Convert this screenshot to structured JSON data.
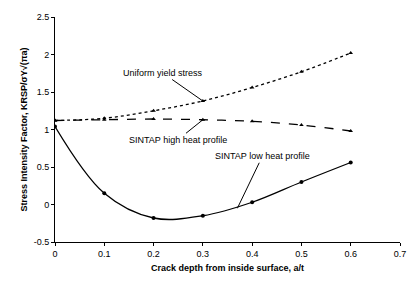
{
  "chart_data": {
    "type": "line",
    "x_label": "Crack depth from inside surface, a/t",
    "y_label": "Stress Intensity Factor, KRSP/σY√(πa)",
    "x": [
      0,
      0.1,
      0.2,
      0.3,
      0.4,
      0.5,
      0.6
    ],
    "series": [
      {
        "name": "Uniform yield stress",
        "color": "#000000",
        "marker": "triangle-up",
        "line_style": "dot",
        "values": [
          1.12,
          1.15,
          1.25,
          1.38,
          1.56,
          1.77,
          2.02
        ]
      },
      {
        "name": "SINTAP high heat profile",
        "color": "#000000",
        "marker": "triangle-up",
        "line_style": "dash",
        "values": [
          1.12,
          1.13,
          1.14,
          1.13,
          1.11,
          1.06,
          0.98
        ]
      },
      {
        "name": "SINTAP low heat profile",
        "color": "#000000",
        "marker": "circle",
        "line_style": "solid",
        "values": [
          1.04,
          0.15,
          -0.18,
          -0.15,
          0.03,
          0.3,
          0.56
        ]
      }
    ],
    "annotations": [
      {
        "text": "Uniform yield stress",
        "x": 0.3,
        "y": 1.38
      },
      {
        "text": "SINTAP high heat profile",
        "x": 0.3,
        "y": 1.13
      },
      {
        "text": "SINTAP low heat profile",
        "x": 0.37,
        "y": -0.05
      }
    ],
    "xlim": [
      0,
      0.7
    ],
    "xticks": [
      0,
      0.1,
      0.2,
      0.3,
      0.4,
      0.5,
      0.6,
      0.7
    ],
    "ylim": [
      -0.5,
      2.5
    ],
    "yticks": [
      -0.5,
      0,
      0.5,
      1,
      1.5,
      2,
      2.5
    ],
    "grid": false
  }
}
